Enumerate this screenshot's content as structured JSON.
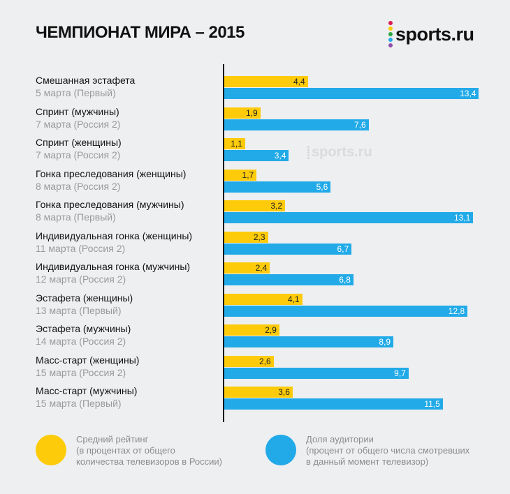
{
  "header": {
    "title": "ЧЕМПИОНАТ МИРА – 2015",
    "logo_text": "sports.ru",
    "logo_dot_colors": [
      "#d81b4f",
      "#fdcb0a",
      "#27a844",
      "#22aae8",
      "#8e4ea6"
    ],
    "watermark_text": "sports.ru"
  },
  "chart_data": {
    "type": "bar",
    "orientation": "horizontal",
    "title": "ЧЕМПИОНАТ МИРА – 2015",
    "xlabel": "",
    "ylabel": "",
    "xlim": [
      0,
      14
    ],
    "grid": false,
    "decimal_separator": ",",
    "categories": [
      {
        "name": "Смешанная эстафета",
        "sub": "5 марта (Первый)"
      },
      {
        "name": "Спринт (мужчины)",
        "sub": "7 марта  (Россия 2)"
      },
      {
        "name": "Спринт (женщины)",
        "sub": "7 марта  (Россия 2)"
      },
      {
        "name": "Гонка преследования (женщины)",
        "sub": "8 марта  (Россия 2)"
      },
      {
        "name": "Гонка преследования (мужчины)",
        "sub": "8 марта  (Первый)"
      },
      {
        "name": "Индивидуальная гонка (женщины)",
        "sub": "11 марта  (Россия 2)"
      },
      {
        "name": "Индивидуальная гонка (мужчины)",
        "sub": "12 марта  (Россия 2)"
      },
      {
        "name": "Эстафета (женщины)",
        "sub": "13 марта  (Первый)"
      },
      {
        "name": "Эстафета (мужчины)",
        "sub": "14 марта  (Россия 2)"
      },
      {
        "name": "Масс-старт (женщины)",
        "sub": "15 марта  (Россия 2)"
      },
      {
        "name": "Масс-старт (мужчины)",
        "sub": "15 марта  (Первый)"
      }
    ],
    "series": [
      {
        "key": "rating",
        "name": "Средний рейтинг",
        "description": [
          "Средний рейтинг",
          "(в процентах от общего",
          "количества телевизоров в России)"
        ],
        "color": "#fdcb0a",
        "values": [
          4.4,
          1.9,
          1.1,
          1.7,
          3.2,
          2.3,
          2.4,
          4.1,
          2.9,
          2.6,
          3.6
        ],
        "labels": [
          "4,4",
          "1,9",
          "1,1",
          "1,7",
          "3,2",
          "2,3",
          "2,4",
          "4,1",
          "2,9",
          "2,6",
          "3,6"
        ]
      },
      {
        "key": "share",
        "name": "Доля аудитории",
        "description": [
          "Доля аудитории",
          "(процент от общего числа смотревших",
          "в данный момент телевизор)"
        ],
        "color": "#22aae8",
        "values": [
          13.4,
          7.6,
          3.4,
          5.6,
          13.1,
          6.7,
          6.8,
          12.8,
          8.9,
          9.7,
          11.5
        ],
        "labels": [
          "13,4",
          "7,6",
          "3,4",
          "5,6",
          "13,1",
          "6,7",
          "6,8",
          "12,8",
          "8,9",
          "9,7",
          "11,5"
        ]
      }
    ],
    "legend": "bottom"
  }
}
